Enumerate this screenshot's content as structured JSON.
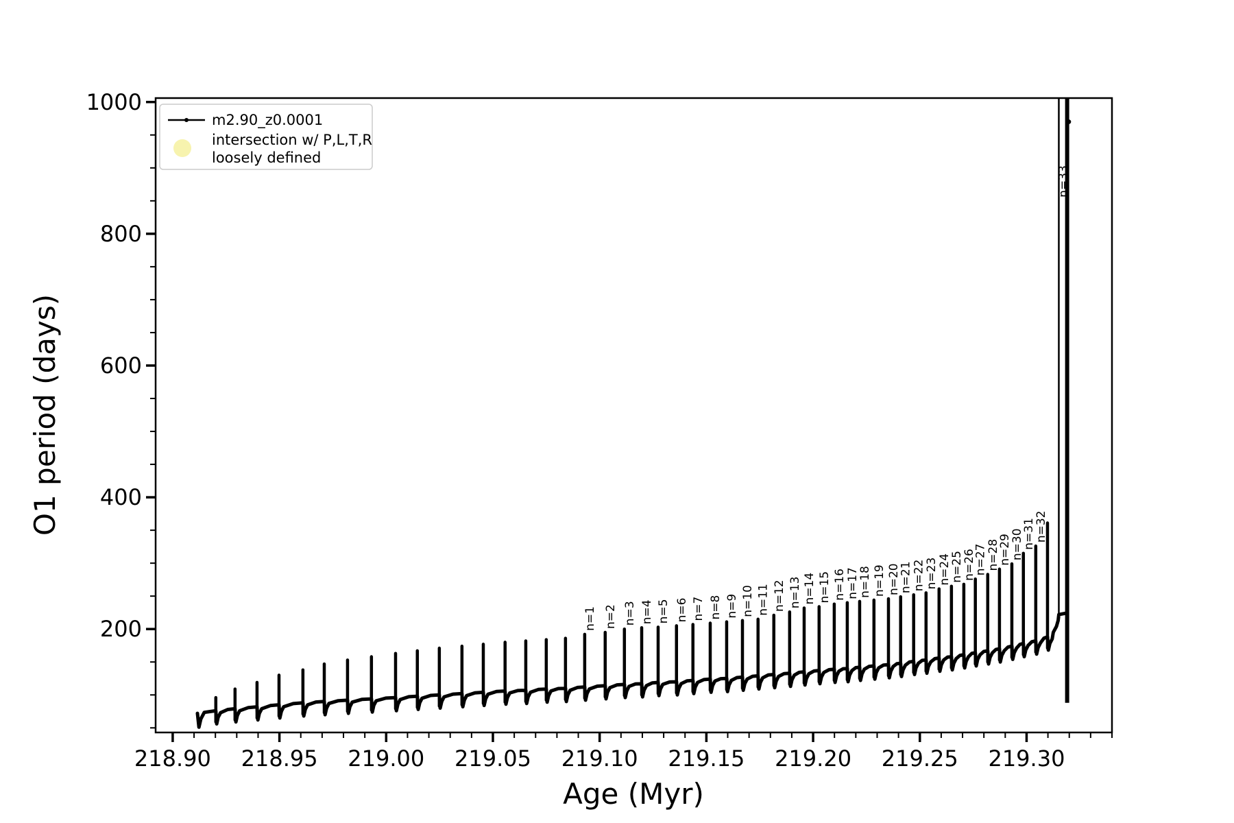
{
  "chart_data": {
    "type": "line",
    "title": "",
    "xlabel": "Age (Myr)",
    "ylabel": "O1 period (days)",
    "xlim": [
      218.892,
      219.34
    ],
    "ylim": [
      43,
      1006
    ],
    "grid": false,
    "x_ticks": {
      "values": [
        218.9,
        218.95,
        219.0,
        219.05,
        219.1,
        219.15,
        219.2,
        219.25,
        219.3
      ],
      "labels": [
        "218.90",
        "218.95",
        "219.00",
        "219.05",
        "219.10",
        "219.15",
        "219.20",
        "219.25",
        "219.30"
      ],
      "minor_step": 0.01
    },
    "y_ticks": {
      "values": [
        200,
        400,
        600,
        800,
        1000
      ],
      "labels": [
        "200",
        "400",
        "600",
        "800",
        "1000"
      ],
      "minor_step": 50
    },
    "legend": {
      "position": "upper-left",
      "entries": [
        {
          "type": "line-with-dot-marker",
          "color": "#000000",
          "label": "m2.90_z0.0001"
        },
        {
          "type": "circle-marker",
          "color": "#f7f3ae",
          "label_line1": "intersection w/ P,L,T,R",
          "label_line2": "loosely defined"
        }
      ]
    },
    "series": {
      "name": "m2.90_z0.0001",
      "color": "#000000",
      "start": {
        "age": 218.9116,
        "value": 72,
        "low": 51
      },
      "dip_depth": 20,
      "baseline": [
        [
          218.9116,
          72
        ],
        [
          218.9202,
          76
        ],
        [
          218.9292,
          79
        ],
        [
          218.9395,
          82
        ],
        [
          218.9498,
          85
        ],
        [
          218.961,
          88
        ],
        [
          218.971,
          90
        ],
        [
          218.9819,
          92
        ],
        [
          218.9931,
          94
        ],
        [
          219.0044,
          96
        ],
        [
          219.0146,
          98
        ],
        [
          219.0249,
          100
        ],
        [
          219.0355,
          102
        ],
        [
          219.0455,
          104
        ],
        [
          219.0557,
          106
        ],
        [
          219.0654,
          107
        ],
        [
          219.075,
          109
        ],
        [
          219.084,
          110
        ],
        [
          219.093,
          112
        ],
        [
          219.1026,
          114
        ],
        [
          219.1116,
          116
        ],
        [
          219.1197,
          117
        ],
        [
          219.1274,
          119
        ],
        [
          219.136,
          120
        ],
        [
          219.1437,
          122
        ],
        [
          219.1518,
          124
        ],
        [
          219.1595,
          125
        ],
        [
          219.1669,
          127
        ],
        [
          219.1742,
          129
        ],
        [
          219.1816,
          131
        ],
        [
          219.189,
          133
        ],
        [
          219.1958,
          135
        ],
        [
          219.2028,
          137
        ],
        [
          219.2099,
          139
        ],
        [
          219.216,
          140
        ],
        [
          219.2218,
          142
        ],
        [
          219.2285,
          144
        ],
        [
          219.2353,
          146
        ],
        [
          219.241,
          148
        ],
        [
          219.2471,
          151
        ],
        [
          219.2529,
          153
        ],
        [
          219.259,
          156
        ],
        [
          219.2648,
          158
        ],
        [
          219.2706,
          161
        ],
        [
          219.276,
          164
        ],
        [
          219.2818,
          167
        ],
        [
          219.2873,
          170
        ],
        [
          219.2931,
          174
        ],
        [
          219.2985,
          178
        ],
        [
          219.3043,
          182
        ],
        [
          219.3098,
          188
        ],
        [
          219.3125,
          195
        ],
        [
          219.314,
          204
        ],
        [
          219.3148,
          213
        ],
        [
          219.3151,
          222
        ]
      ],
      "spikes": [
        [
          0,
          218.9202,
          96
        ],
        [
          0,
          218.9292,
          109
        ],
        [
          0,
          218.9395,
          119
        ],
        [
          0,
          218.9498,
          130
        ],
        [
          0,
          218.961,
          138
        ],
        [
          0,
          218.971,
          147
        ],
        [
          0,
          218.9819,
          153
        ],
        [
          0,
          218.9931,
          158
        ],
        [
          0,
          219.0044,
          163
        ],
        [
          0,
          219.0146,
          167
        ],
        [
          0,
          219.0249,
          171
        ],
        [
          0,
          219.0355,
          174
        ],
        [
          0,
          219.0455,
          177
        ],
        [
          0,
          219.0557,
          180
        ],
        [
          0,
          219.0654,
          182
        ],
        [
          0,
          219.075,
          184
        ],
        [
          0,
          219.084,
          186
        ],
        [
          1,
          219.093,
          192
        ],
        [
          2,
          219.1026,
          195
        ],
        [
          3,
          219.1116,
          200
        ],
        [
          4,
          219.1197,
          202
        ],
        [
          5,
          219.1274,
          203
        ],
        [
          6,
          219.136,
          205
        ],
        [
          7,
          219.1437,
          207
        ],
        [
          8,
          219.1518,
          209
        ],
        [
          9,
          219.1595,
          211
        ],
        [
          10,
          219.1669,
          213
        ],
        [
          11,
          219.1742,
          215
        ],
        [
          12,
          219.1816,
          221
        ],
        [
          13,
          219.189,
          226
        ],
        [
          14,
          219.1958,
          232
        ],
        [
          15,
          219.2028,
          234
        ],
        [
          16,
          219.2099,
          238
        ],
        [
          17,
          219.216,
          240
        ],
        [
          18,
          219.2218,
          242
        ],
        [
          19,
          219.2285,
          244
        ],
        [
          20,
          219.2353,
          246
        ],
        [
          21,
          219.241,
          249
        ],
        [
          22,
          219.2471,
          252
        ],
        [
          23,
          219.2529,
          255
        ],
        [
          24,
          219.259,
          261
        ],
        [
          25,
          219.2648,
          265
        ],
        [
          26,
          219.2706,
          268
        ],
        [
          27,
          219.276,
          276
        ],
        [
          28,
          219.2818,
          283
        ],
        [
          29,
          219.2873,
          291
        ],
        [
          30,
          219.2931,
          299
        ],
        [
          31,
          219.2985,
          315
        ],
        [
          32,
          219.3043,
          326
        ],
        [
          0,
          219.3098,
          361
        ]
      ],
      "finale": {
        "label": "n=33",
        "up_age": 219.3151,
        "clip_value": 1050,
        "plateau_end_age": 219.3185,
        "plateau_value": 224,
        "down_age": 219.319,
        "down_bottom": 88,
        "label_value": 850,
        "dot": {
          "age": 219.3197,
          "value": 970
        }
      },
      "spike_label_prefix": "n="
    }
  }
}
